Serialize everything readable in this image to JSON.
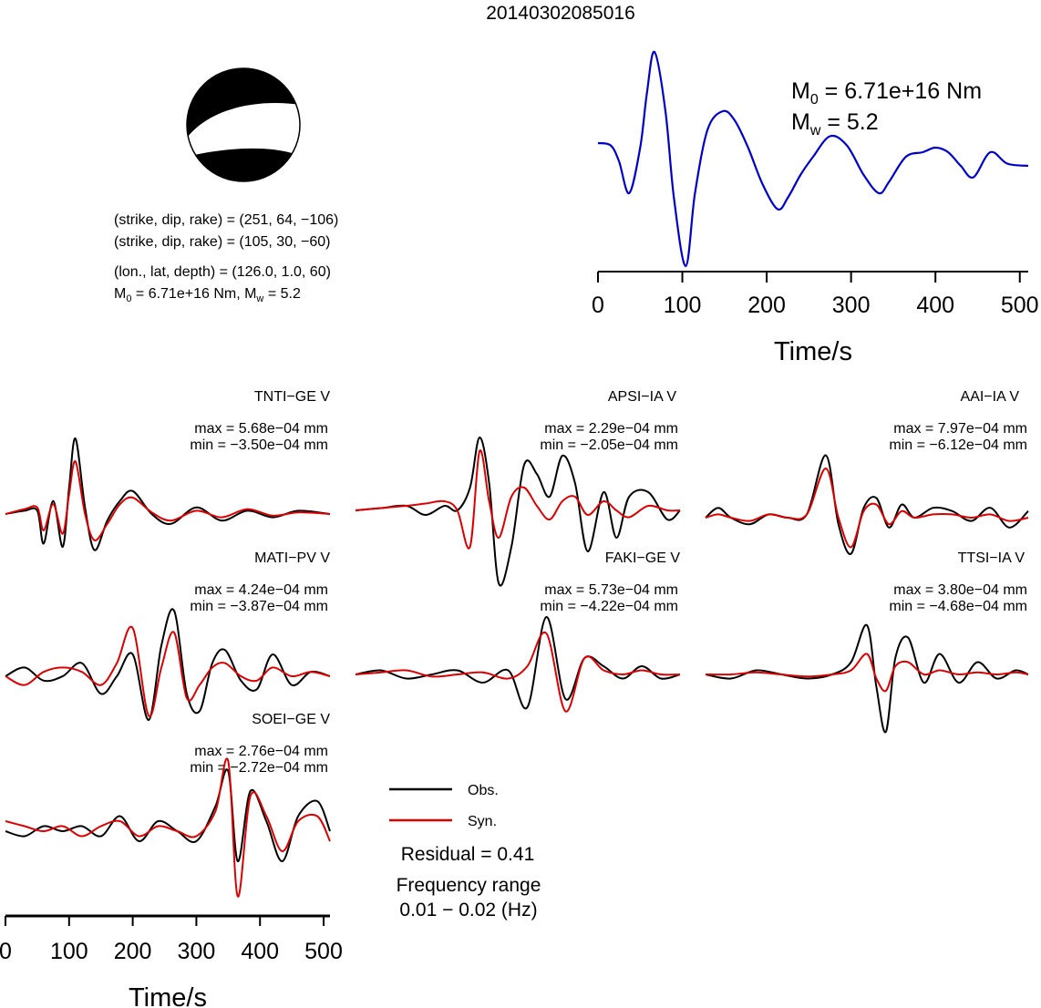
{
  "title": "20140302085016",
  "colors": {
    "observed": "#000000",
    "synthetic": "#dd0000",
    "stf": "#0000cc",
    "beachball": "#000000"
  },
  "beachball": {
    "lines": [
      "(strike, dip, rake) = (251, 64, −106)",
      "(strike, dip, rake) = (105, 30, −60)",
      "(lon., lat, depth) = (126.0, 1.0, 60)"
    ],
    "moment_prefix": "M",
    "moment_sub": "0",
    "moment_value": " = 6.71e+16 Nm, M",
    "mw_sub": "w",
    "mw_value": " = 5.2"
  },
  "stf_panel": {
    "m0_symbol": "M",
    "m0_sub": "0",
    "m0_text": " = 6.71e+16 Nm",
    "mw_symbol": "M",
    "mw_sub": "w",
    "mw_text": " = 5.2"
  },
  "legend": {
    "obs": "Obs.",
    "syn": "Syn."
  },
  "residual": "Residual = 0.41",
  "freq_label": "Frequency range",
  "freq_range": "0.01 − 0.02 (Hz)",
  "chart_data": [
    {
      "type": "line",
      "panel": "source-time-function",
      "xlabel": "Time/s",
      "xlim": [
        0,
        510
      ],
      "xticks": [
        0,
        100,
        200,
        300,
        400,
        500
      ],
      "series": [
        {
          "x": [
            0,
            15,
            25,
            37,
            50,
            58,
            67,
            80,
            90,
            104,
            115,
            130,
            148,
            162,
            178,
            195,
            213,
            225,
            240,
            255,
            275,
            295,
            315,
            333,
            345,
            365,
            385,
            400,
            415,
            430,
            445,
            465,
            485,
            510
          ],
          "y": [
            0.5,
            0.45,
            0.1,
            -0.6,
            0.4,
            1.6,
            2.5,
            1.2,
            -0.7,
            -2.2,
            -0.6,
            0.8,
            1.2,
            1.0,
            0.4,
            -0.4,
            -0.95,
            -0.7,
            -0.2,
            0.2,
            0.65,
            0.45,
            -0.2,
            -0.6,
            -0.35,
            0.2,
            0.3,
            0.4,
            0.3,
            0.0,
            -0.25,
            0.3,
            0.05,
            0.0
          ]
        }
      ]
    },
    {
      "type": "line",
      "station": "TNTI−GE V",
      "max": "max = 5.68e−04 mm",
      "min": "min = −3.50e−04 mm",
      "series": [
        {
          "name": "Obs.",
          "x": [
            0,
            30,
            50,
            60,
            75,
            90,
            100,
            110,
            125,
            140,
            160,
            180,
            200,
            230,
            260,
            300,
            340,
            380,
            420,
            460,
            510
          ],
          "y": [
            0.0,
            0.1,
            0.1,
            -0.9,
            0.4,
            -1.0,
            0.8,
            2.3,
            0.2,
            -1.1,
            -0.2,
            0.4,
            0.7,
            0.0,
            -0.3,
            0.2,
            -0.2,
            0.1,
            -0.1,
            0.1,
            0.0
          ]
        },
        {
          "name": "Syn.",
          "x": [
            0,
            30,
            50,
            60,
            75,
            90,
            100,
            110,
            125,
            140,
            160,
            180,
            200,
            230,
            260,
            300,
            340,
            380,
            420,
            460,
            510
          ],
          "y": [
            0.0,
            0.15,
            0.2,
            -0.5,
            0.3,
            -0.6,
            0.6,
            1.6,
            0.0,
            -0.8,
            -0.3,
            0.3,
            0.5,
            0.05,
            -0.2,
            0.1,
            -0.1,
            0.15,
            -0.05,
            0.05,
            0.0
          ]
        }
      ]
    },
    {
      "type": "line",
      "station": "APSI−IA V",
      "max": "max = 2.29e−04 mm",
      "min": "min = −2.05e−04 mm",
      "series": [
        {
          "name": "Obs.",
          "x": [
            0,
            40,
            80,
            110,
            140,
            160,
            180,
            195,
            210,
            225,
            245,
            265,
            285,
            305,
            325,
            345,
            365,
            390,
            410,
            430,
            460,
            490,
            510
          ],
          "y": [
            0.0,
            0.05,
            0.1,
            -0.1,
            0.1,
            0.0,
            0.5,
            1.6,
            0.6,
            -1.6,
            -0.8,
            1.0,
            0.8,
            0.3,
            1.2,
            0.6,
            -0.9,
            0.4,
            -0.6,
            0.3,
            0.4,
            -0.2,
            0.0
          ]
        },
        {
          "name": "Syn.",
          "x": [
            0,
            40,
            80,
            110,
            140,
            160,
            180,
            195,
            210,
            225,
            245,
            265,
            285,
            305,
            325,
            345,
            365,
            390,
            410,
            430,
            460,
            490,
            510
          ],
          "y": [
            0.0,
            0.05,
            0.1,
            0.15,
            0.2,
            0.0,
            -0.8,
            1.3,
            0.2,
            -0.6,
            0.3,
            0.5,
            0.1,
            -0.2,
            0.2,
            0.3,
            -0.1,
            0.2,
            0.0,
            -0.15,
            0.1,
            0.0,
            0.0
          ]
        }
      ]
    },
    {
      "type": "line",
      "station": "AAI−IA V",
      "max": "max = 7.97e−04 mm",
      "min": "min = −6.12e−04 mm",
      "series": [
        {
          "name": "Obs.",
          "x": [
            0,
            20,
            40,
            70,
            100,
            130,
            160,
            190,
            210,
            230,
            250,
            270,
            290,
            310,
            330,
            360,
            390,
            420,
            450,
            480,
            510
          ],
          "y": [
            0.0,
            0.3,
            0.0,
            -0.2,
            0.1,
            0.0,
            0.1,
            1.9,
            -0.2,
            -1.1,
            0.3,
            0.6,
            -0.3,
            0.4,
            0.0,
            0.3,
            0.2,
            -0.1,
            0.3,
            -0.3,
            0.2
          ]
        },
        {
          "name": "Syn.",
          "x": [
            0,
            20,
            40,
            70,
            100,
            130,
            160,
            190,
            210,
            230,
            250,
            270,
            290,
            310,
            330,
            360,
            390,
            420,
            450,
            480,
            510
          ],
          "y": [
            0.0,
            0.1,
            0.0,
            -0.1,
            0.1,
            0.0,
            0.1,
            1.5,
            0.0,
            -0.9,
            0.2,
            0.4,
            -0.2,
            0.2,
            0.0,
            0.1,
            0.1,
            0.0,
            0.1,
            -0.1,
            0.0
          ]
        }
      ]
    },
    {
      "type": "line",
      "station": "MATI−PV V",
      "max": "max = 4.24e−04 mm",
      "min": "min = −3.87e−04 mm",
      "series": [
        {
          "name": "Obs.",
          "x": [
            0,
            30,
            60,
            90,
            120,
            150,
            175,
            200,
            225,
            245,
            265,
            285,
            305,
            325,
            345,
            370,
            395,
            420,
            450,
            480,
            510
          ],
          "y": [
            0.0,
            0.2,
            -0.1,
            0.0,
            0.3,
            -0.4,
            0.0,
            0.5,
            -1.0,
            0.7,
            1.5,
            -0.4,
            -0.8,
            0.3,
            0.6,
            -0.1,
            -0.3,
            0.5,
            -0.2,
            0.1,
            0.0
          ]
        },
        {
          "name": "Syn.",
          "x": [
            0,
            30,
            60,
            90,
            120,
            150,
            175,
            200,
            225,
            245,
            265,
            285,
            305,
            325,
            345,
            370,
            395,
            420,
            450,
            480,
            510
          ],
          "y": [
            0.0,
            -0.2,
            0.1,
            0.2,
            0.1,
            -0.2,
            0.3,
            1.1,
            -0.9,
            0.2,
            1.0,
            -0.5,
            -0.2,
            0.2,
            0.3,
            0.0,
            -0.1,
            0.2,
            0.0,
            0.1,
            0.0
          ]
        }
      ]
    },
    {
      "type": "line",
      "station": "FAKI−GE V",
      "max": "max = 5.73e−04 mm",
      "min": "min = −4.22e−04 mm",
      "series": [
        {
          "name": "Obs.",
          "x": [
            0,
            40,
            80,
            120,
            160,
            200,
            240,
            270,
            300,
            330,
            360,
            390,
            420,
            450,
            480,
            510
          ],
          "y": [
            0.0,
            0.1,
            -0.1,
            0.0,
            0.1,
            -0.2,
            0.1,
            -0.8,
            1.4,
            -0.6,
            0.4,
            0.2,
            -0.1,
            0.2,
            -0.1,
            0.0
          ]
        },
        {
          "name": "Syn.",
          "x": [
            0,
            40,
            80,
            120,
            160,
            200,
            240,
            270,
            300,
            330,
            360,
            390,
            420,
            450,
            480,
            510
          ],
          "y": [
            0.0,
            0.05,
            0.1,
            -0.05,
            0.0,
            0.05,
            -0.1,
            0.2,
            1.0,
            -0.9,
            0.4,
            0.1,
            0.0,
            0.1,
            0.0,
            0.0
          ]
        }
      ]
    },
    {
      "type": "line",
      "station": "TTSI−IA V",
      "max": "max = 3.80e−04 mm",
      "min": "min = −4.68e−04 mm",
      "series": [
        {
          "name": "Obs.",
          "x": [
            0,
            40,
            80,
            120,
            160,
            200,
            230,
            255,
            270,
            285,
            300,
            320,
            345,
            370,
            400,
            430,
            460,
            490,
            510
          ],
          "y": [
            0.0,
            -0.1,
            0.1,
            0.0,
            -0.1,
            0.0,
            0.3,
            1.2,
            -0.3,
            -1.4,
            0.4,
            0.9,
            -0.2,
            0.5,
            -0.2,
            0.3,
            -0.1,
            0.1,
            0.0
          ]
        },
        {
          "name": "Syn.",
          "x": [
            0,
            40,
            80,
            120,
            160,
            200,
            230,
            255,
            270,
            285,
            300,
            320,
            345,
            370,
            400,
            430,
            460,
            490,
            510
          ],
          "y": [
            0.0,
            0.0,
            0.05,
            0.0,
            -0.05,
            0.0,
            0.1,
            0.5,
            -0.1,
            -0.4,
            0.2,
            0.3,
            0.0,
            0.1,
            0.0,
            0.05,
            0.0,
            0.05,
            0.0
          ]
        }
      ]
    },
    {
      "type": "line",
      "station": "SOEI−GE V",
      "max": "max = 2.76e−04 mm",
      "min": "min = −2.72e−04 mm",
      "xlabel": "Time/s",
      "xlim": [
        0,
        510
      ],
      "xticks": [
        0,
        100,
        200,
        300,
        400,
        500
      ],
      "series": [
        {
          "name": "Obs.",
          "x": [
            0,
            30,
            60,
            90,
            120,
            150,
            180,
            210,
            240,
            270,
            300,
            330,
            350,
            365,
            385,
            410,
            435,
            460,
            490,
            510
          ],
          "y": [
            0.0,
            -0.1,
            0.1,
            0.0,
            0.1,
            -0.1,
            0.3,
            -0.2,
            0.2,
            0.0,
            -0.2,
            0.5,
            1.2,
            -0.6,
            0.8,
            0.2,
            -0.6,
            0.3,
            0.6,
            0.0
          ]
        },
        {
          "name": "Syn.",
          "x": [
            0,
            30,
            60,
            90,
            120,
            150,
            180,
            210,
            240,
            270,
            300,
            330,
            350,
            365,
            385,
            410,
            435,
            460,
            490,
            510
          ],
          "y": [
            0.2,
            0.1,
            0.0,
            0.1,
            -0.1,
            0.1,
            0.2,
            -0.1,
            0.1,
            0.0,
            -0.1,
            0.4,
            1.4,
            -1.3,
            0.7,
            0.3,
            -0.4,
            0.2,
            0.3,
            -0.2
          ]
        }
      ]
    }
  ]
}
